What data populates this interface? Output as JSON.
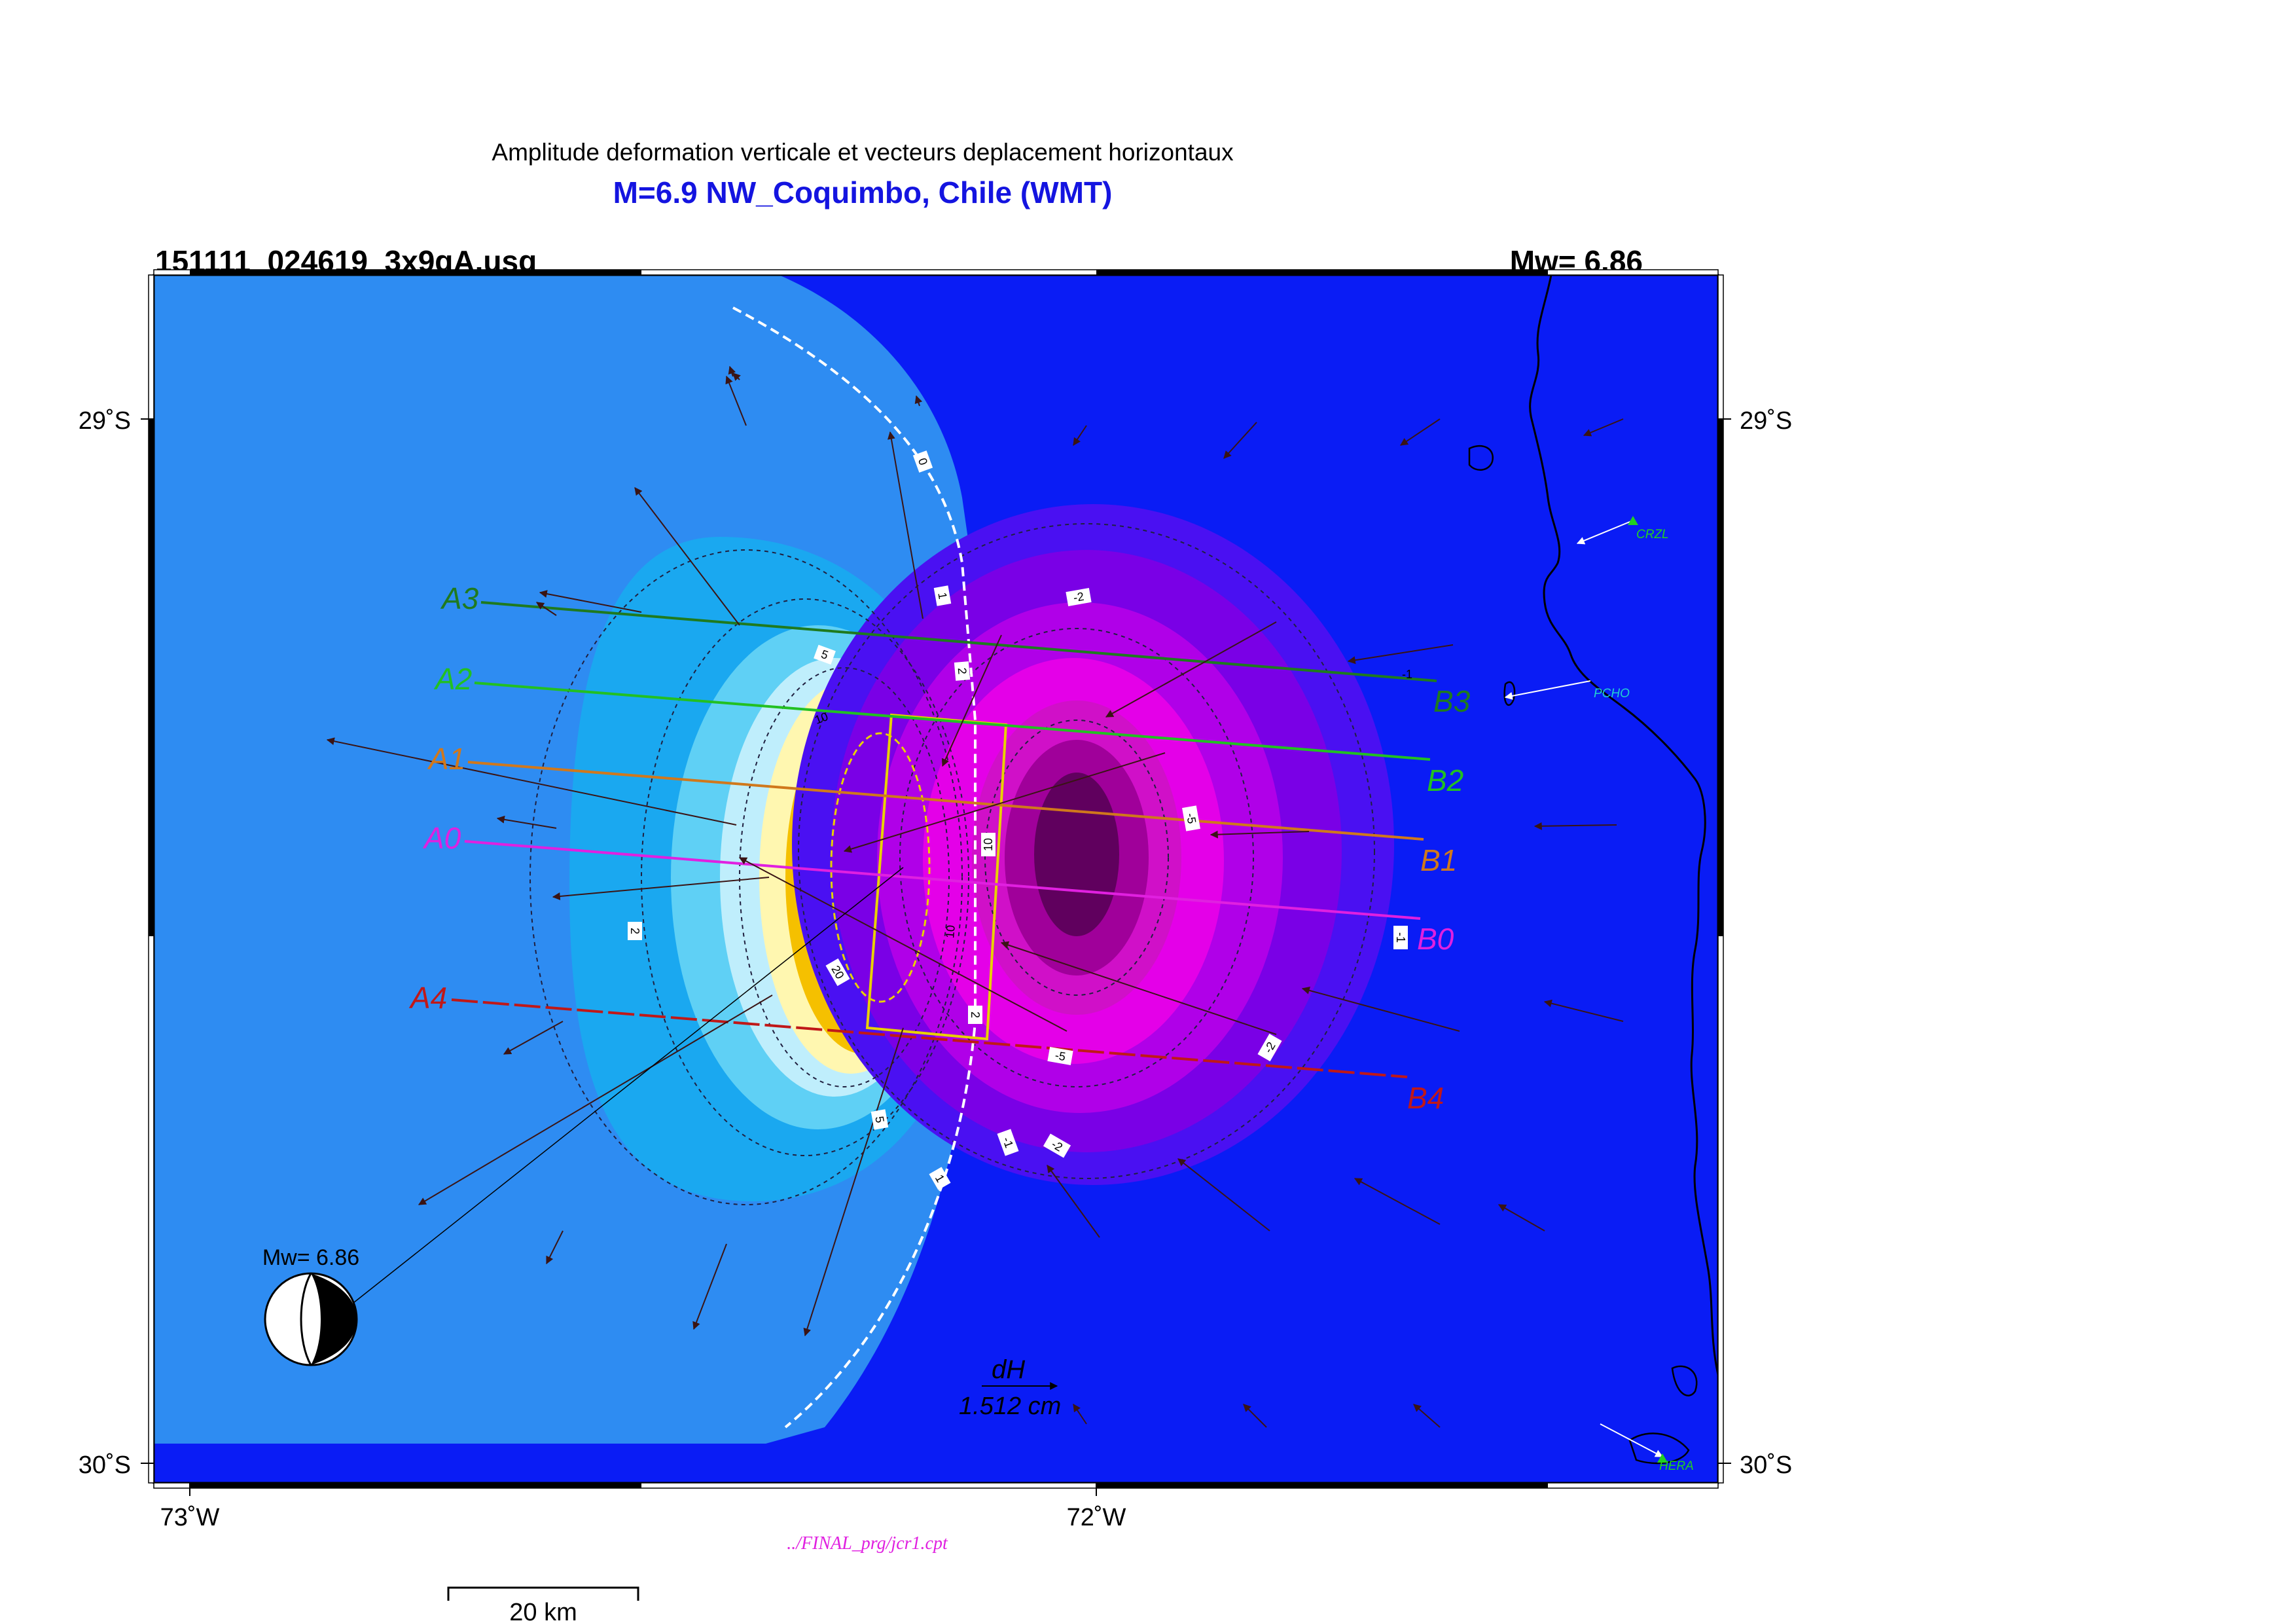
{
  "header": {
    "title": "Amplitude deformation verticale et vecteurs deplacement horizontaux",
    "event": "M=6.9 NW_Coquimbo, Chile (WMT)",
    "file_id": "151111_024619_3x9gA.usg",
    "magnitude": "Mw= 6.86"
  },
  "axes": {
    "lat_top": "29˚S",
    "lat_bottom": "30˚S",
    "lon_left": "73˚W",
    "lon_mid": "72˚W"
  },
  "profiles": [
    {
      "start": "A3",
      "end": "B3",
      "color": "#1f7a1f"
    },
    {
      "start": "A2",
      "end": "B2",
      "color": "#22c022"
    },
    {
      "start": "A1",
      "end": "B1",
      "color": "#d0781c"
    },
    {
      "start": "A0",
      "end": "B0",
      "color": "#e020e0"
    },
    {
      "start": "A4",
      "end": "B4",
      "color": "#c01818"
    }
  ],
  "contour_labels": [
    "0",
    "1",
    "2",
    "5",
    "10",
    "10",
    "20",
    "-2",
    "-1",
    "-5",
    "10",
    "-1",
    "-2",
    "-5",
    "2",
    "2",
    "1",
    "5",
    "-2",
    "-1"
  ],
  "stations": [
    "CRZL",
    "PCHO",
    "HERA"
  ],
  "beachball_label": "Mw= 6.86",
  "vector_scale": {
    "label": "dH",
    "value": "1.512  cm"
  },
  "cpt_file": "../FINAL_prg/jcr1.cpt",
  "scale_bar": "20 km",
  "colors": {
    "background": "#0a1cf5",
    "uplift_outer": "#2e8cf2",
    "subsidence": "#7a00e6",
    "profile_yellow": "#e8d000"
  }
}
